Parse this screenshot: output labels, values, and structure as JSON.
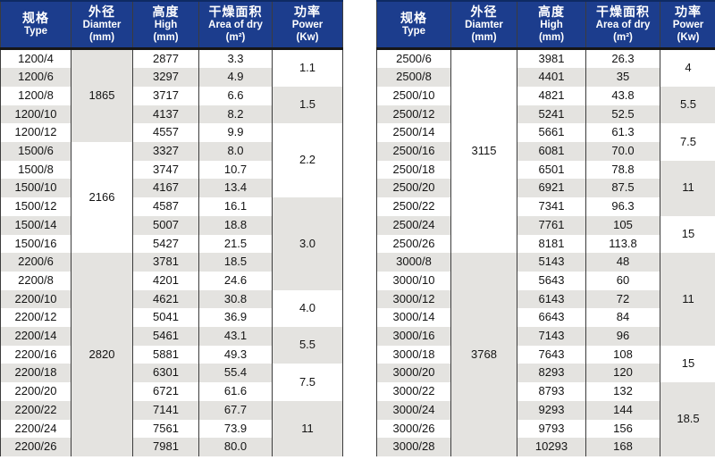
{
  "colors": {
    "header_bg": "#1c3d8d",
    "header_text": "#ffffff",
    "row_alt_bg": "#e4e3e0",
    "row_bg": "#ffffff",
    "border": "#3c3c3c",
    "text": "#141414",
    "header_top_edge": "#0e2a63"
  },
  "tables": [
    {
      "headers": [
        {
          "key": "type",
          "cn": "规格",
          "en": "Type",
          "unit": ""
        },
        {
          "key": "diameter",
          "cn": "外径",
          "en": "Diamter",
          "unit": "(mm)"
        },
        {
          "key": "high",
          "cn": "高度",
          "en": "High",
          "unit": "(mm)"
        },
        {
          "key": "area",
          "cn": "干燥面积",
          "en": "Area of dry",
          "unit": "(m²)"
        },
        {
          "key": "power",
          "cn": "功率",
          "en": "Power",
          "unit": "(Kw)"
        }
      ],
      "rows": [
        {
          "type": "1200/4",
          "high": "2877",
          "area": "3.3"
        },
        {
          "type": "1200/6",
          "high": "3297",
          "area": "4.9"
        },
        {
          "type": "1200/8",
          "high": "3717",
          "area": "6.6"
        },
        {
          "type": "1200/10",
          "high": "4137",
          "area": "8.2"
        },
        {
          "type": "1200/12",
          "high": "4557",
          "area": "9.9"
        },
        {
          "type": "1500/6",
          "high": "3327",
          "area": "8.0"
        },
        {
          "type": "1500/8",
          "high": "3747",
          "area": "10.7"
        },
        {
          "type": "1500/10",
          "high": "4167",
          "area": "13.4"
        },
        {
          "type": "1500/12",
          "high": "4587",
          "area": "16.1"
        },
        {
          "type": "1500/14",
          "high": "5007",
          "area": "18.8"
        },
        {
          "type": "1500/16",
          "high": "5427",
          "area": "21.5"
        },
        {
          "type": "2200/6",
          "high": "3781",
          "area": "18.5"
        },
        {
          "type": "2200/8",
          "high": "4201",
          "area": "24.6"
        },
        {
          "type": "2200/10",
          "high": "4621",
          "area": "30.8"
        },
        {
          "type": "2200/12",
          "high": "5041",
          "area": "36.9"
        },
        {
          "type": "2200/14",
          "high": "5461",
          "area": "43.1"
        },
        {
          "type": "2200/16",
          "high": "5881",
          "area": "49.3"
        },
        {
          "type": "2200/18",
          "high": "6301",
          "area": "55.4"
        },
        {
          "type": "2200/20",
          "high": "6721",
          "area": "61.6"
        },
        {
          "type": "2200/22",
          "high": "7141",
          "area": "67.7"
        },
        {
          "type": "2200/24",
          "high": "7561",
          "area": "73.9"
        },
        {
          "type": "2200/26",
          "high": "7981",
          "area": "80.0"
        }
      ],
      "diameters": [
        {
          "value": "1865",
          "start": 0,
          "span": 5,
          "shade": true
        },
        {
          "value": "2166",
          "start": 5,
          "span": 6,
          "shade": false
        },
        {
          "value": "2820",
          "start": 11,
          "span": 11,
          "shade": true
        }
      ],
      "powers": [
        {
          "value": "1.1",
          "start": 0,
          "span": 2,
          "shade": false
        },
        {
          "value": "1.5",
          "start": 2,
          "span": 2,
          "shade": true
        },
        {
          "value": "2.2",
          "start": 4,
          "span": 4,
          "shade": false
        },
        {
          "value": "3.0",
          "start": 8,
          "span": 5,
          "shade": true
        },
        {
          "value": "4.0",
          "start": 13,
          "span": 2,
          "shade": false
        },
        {
          "value": "5.5",
          "start": 15,
          "span": 2,
          "shade": true
        },
        {
          "value": "7.5",
          "start": 17,
          "span": 2,
          "shade": false
        },
        {
          "value": "11",
          "start": 19,
          "span": 3,
          "shade": true
        }
      ]
    },
    {
      "headers": [
        {
          "key": "type",
          "cn": "规格",
          "en": "Type",
          "unit": ""
        },
        {
          "key": "diameter",
          "cn": "外径",
          "en": "Diamter",
          "unit": "(mm)"
        },
        {
          "key": "high",
          "cn": "高度",
          "en": "High",
          "unit": "(mm)"
        },
        {
          "key": "area",
          "cn": "干燥面积",
          "en": "Area of dry",
          "unit": "(m²)"
        },
        {
          "key": "power",
          "cn": "功率",
          "en": "Power",
          "unit": "(Kw)"
        }
      ],
      "rows": [
        {
          "type": "2500/6",
          "high": "3981",
          "area": "26.3"
        },
        {
          "type": "2500/8",
          "high": "4401",
          "area": "35"
        },
        {
          "type": "2500/10",
          "high": "4821",
          "area": "43.8"
        },
        {
          "type": "2500/12",
          "high": "5241",
          "area": "52.5"
        },
        {
          "type": "2500/14",
          "high": "5661",
          "area": "61.3"
        },
        {
          "type": "2500/16",
          "high": "6081",
          "area": "70.0"
        },
        {
          "type": "2500/18",
          "high": "6501",
          "area": "78.8"
        },
        {
          "type": "2500/20",
          "high": "6921",
          "area": "87.5"
        },
        {
          "type": "2500/22",
          "high": "7341",
          "area": "96.3"
        },
        {
          "type": "2500/24",
          "high": "7761",
          "area": "105"
        },
        {
          "type": "2500/26",
          "high": "8181",
          "area": "113.8"
        },
        {
          "type": "3000/8",
          "high": "5143",
          "area": "48"
        },
        {
          "type": "3000/10",
          "high": "5643",
          "area": "60"
        },
        {
          "type": "3000/12",
          "high": "6143",
          "area": "72"
        },
        {
          "type": "3000/14",
          "high": "6643",
          "area": "84"
        },
        {
          "type": "3000/16",
          "high": "7143",
          "area": "96"
        },
        {
          "type": "3000/18",
          "high": "7643",
          "area": "108"
        },
        {
          "type": "3000/20",
          "high": "8293",
          "area": "120"
        },
        {
          "type": "3000/22",
          "high": "8793",
          "area": "132"
        },
        {
          "type": "3000/24",
          "high": "9293",
          "area": "144"
        },
        {
          "type": "3000/26",
          "high": "9793",
          "area": "156"
        },
        {
          "type": "3000/28",
          "high": "10293",
          "area": "168"
        }
      ],
      "diameters": [
        {
          "value": "3115",
          "start": 0,
          "span": 11,
          "shade": false
        },
        {
          "value": "3768",
          "start": 11,
          "span": 11,
          "shade": true
        }
      ],
      "powers": [
        {
          "value": "4",
          "start": 0,
          "span": 2,
          "shade": false
        },
        {
          "value": "5.5",
          "start": 2,
          "span": 2,
          "shade": true
        },
        {
          "value": "7.5",
          "start": 4,
          "span": 2,
          "shade": false
        },
        {
          "value": "11",
          "start": 6,
          "span": 3,
          "shade": true
        },
        {
          "value": "15",
          "start": 9,
          "span": 2,
          "shade": false
        },
        {
          "value": "11",
          "start": 11,
          "span": 5,
          "shade": true
        },
        {
          "value": "15",
          "start": 16,
          "span": 2,
          "shade": false
        },
        {
          "value": "18.5",
          "start": 18,
          "span": 4,
          "shade": true
        }
      ]
    }
  ]
}
